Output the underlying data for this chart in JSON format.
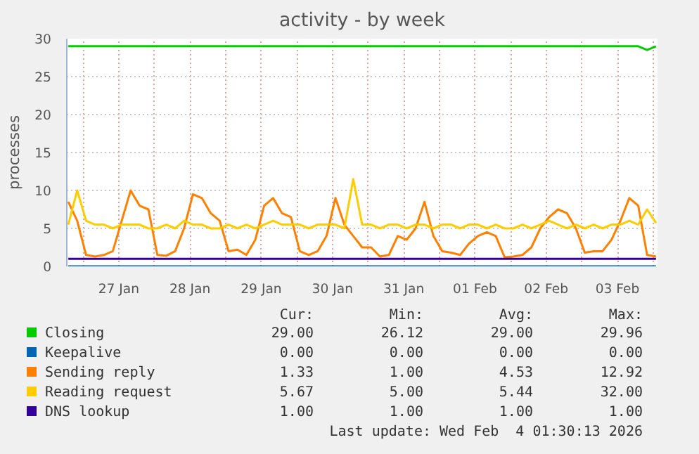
{
  "chart_data": {
    "type": "line",
    "title": "activity - by week",
    "ylabel": "processes",
    "x": [
      "2026-01-26T19:00",
      "2026-01-26T22:00",
      "2026-01-27T01:00",
      "2026-01-27T04:00",
      "2026-01-27T07:00",
      "2026-01-27T10:00",
      "2026-01-27T13:00",
      "2026-01-27T16:00",
      "2026-01-27T19:00",
      "2026-01-27T22:00",
      "2026-01-28T01:00",
      "2026-01-28T04:00",
      "2026-01-28T07:00",
      "2026-01-28T10:00",
      "2026-01-28T13:00",
      "2026-01-28T16:00",
      "2026-01-28T19:00",
      "2026-01-28T22:00",
      "2026-01-29T01:00",
      "2026-01-29T04:00",
      "2026-01-29T07:00",
      "2026-01-29T10:00",
      "2026-01-29T13:00",
      "2026-01-29T16:00",
      "2026-01-29T19:00",
      "2026-01-29T22:00",
      "2026-01-30T01:00",
      "2026-01-30T04:00",
      "2026-01-30T07:00",
      "2026-01-30T10:00",
      "2026-01-30T13:00",
      "2026-01-30T16:00",
      "2026-01-30T19:00",
      "2026-01-30T22:00",
      "2026-01-31T01:00",
      "2026-01-31T04:00",
      "2026-01-31T07:00",
      "2026-01-31T10:00",
      "2026-01-31T13:00",
      "2026-01-31T16:00",
      "2026-01-31T19:00",
      "2026-01-31T22:00",
      "2026-02-01T01:00",
      "2026-02-01T04:00",
      "2026-02-01T07:00",
      "2026-02-01T10:00",
      "2026-02-01T13:00",
      "2026-02-01T16:00",
      "2026-02-01T19:00",
      "2026-02-01T22:00",
      "2026-02-02T01:00",
      "2026-02-02T04:00",
      "2026-02-02T07:00",
      "2026-02-02T10:00",
      "2026-02-02T13:00",
      "2026-02-02T16:00",
      "2026-02-02T19:00",
      "2026-02-02T22:00",
      "2026-02-03T01:00",
      "2026-02-03T04:00",
      "2026-02-03T07:00",
      "2026-02-03T10:00",
      "2026-02-03T13:00",
      "2026-02-03T16:00",
      "2026-02-03T19:00",
      "2026-02-03T22:00",
      "2026-02-04T01:00"
    ],
    "series": [
      {
        "name": "Closing",
        "color": "#00cc00",
        "values": [
          29,
          29,
          29,
          29,
          29,
          29,
          29,
          29,
          29,
          29,
          29,
          29,
          29,
          29,
          29,
          29,
          29,
          29,
          29,
          29,
          29,
          29,
          29,
          29,
          29,
          29,
          29,
          29,
          29,
          29,
          29,
          29,
          29,
          29,
          29,
          29,
          29,
          29,
          29,
          29,
          29,
          29,
          29,
          29,
          29,
          29,
          29,
          29,
          29,
          29,
          29,
          29,
          29,
          29,
          29,
          29,
          29,
          29,
          29,
          29,
          29,
          29,
          29,
          29,
          29,
          28.5,
          29
        ]
      },
      {
        "name": "Keepalive",
        "color": "#0066b3",
        "values": [
          0,
          0,
          0,
          0,
          0,
          0,
          0,
          0,
          0,
          0,
          0,
          0,
          0,
          0,
          0,
          0,
          0,
          0,
          0,
          0,
          0,
          0,
          0,
          0,
          0,
          0,
          0,
          0,
          0,
          0,
          0,
          0,
          0,
          0,
          0,
          0,
          0,
          0,
          0,
          0,
          0,
          0,
          0,
          0,
          0,
          0,
          0,
          0,
          0,
          0,
          0,
          0,
          0,
          0,
          0,
          0,
          0,
          0,
          0,
          0,
          0,
          0,
          0,
          0,
          0,
          0,
          0
        ]
      },
      {
        "name": "Sending reply",
        "color": "#ff8000",
        "values": [
          8.5,
          6,
          1.5,
          1.3,
          1.5,
          2,
          6,
          10,
          8,
          7.5,
          1.5,
          1.4,
          2,
          5,
          9.5,
          9,
          7,
          6,
          2,
          2.2,
          1.5,
          3.5,
          8,
          9,
          7,
          6.5,
          2,
          1.5,
          2,
          4,
          9,
          5.5,
          4,
          2.5,
          2.5,
          1.3,
          1.5,
          4,
          3.5,
          5,
          8.5,
          4,
          2,
          1.8,
          1.5,
          3,
          4,
          4.5,
          4,
          1.2,
          1.3,
          1.5,
          2.5,
          5,
          6.5,
          7.5,
          7,
          5,
          1.8,
          2,
          2,
          3.5,
          6,
          9,
          8,
          1.5,
          1.3
        ]
      },
      {
        "name": "Reading request",
        "color": "#ffcc00",
        "values": [
          5.5,
          10,
          6,
          5.5,
          5.5,
          5,
          5.5,
          5.5,
          5.5,
          5,
          5,
          5.5,
          5,
          6,
          5.5,
          5.5,
          5,
          5,
          5.5,
          5,
          5.5,
          5,
          5.5,
          6,
          5.5,
          5.5,
          5.5,
          5,
          5.5,
          5.5,
          5.5,
          5,
          11.5,
          5.5,
          5.5,
          5,
          5.5,
          5.5,
          5,
          5.5,
          5.5,
          5,
          5.5,
          5.5,
          5,
          5.5,
          5.5,
          5,
          5.5,
          5,
          5,
          5.5,
          5,
          5.5,
          6,
          5.5,
          5,
          5.5,
          5,
          5.5,
          5,
          5.5,
          5.5,
          6,
          5.5,
          7.5,
          5.7
        ]
      },
      {
        "name": "DNS lookup",
        "color": "#330099",
        "values": [
          1,
          1,
          1,
          1,
          1,
          1,
          1,
          1,
          1,
          1,
          1,
          1,
          1,
          1,
          1,
          1,
          1,
          1,
          1,
          1,
          1,
          1,
          1,
          1,
          1,
          1,
          1,
          1,
          1,
          1,
          1,
          1,
          1,
          1,
          1,
          1,
          1,
          1,
          1,
          1,
          1,
          1,
          1,
          1,
          1,
          1,
          1,
          1,
          1,
          1,
          1,
          1,
          1,
          1,
          1,
          1,
          1,
          1,
          1,
          1,
          1,
          1,
          1,
          1,
          1,
          1,
          1
        ]
      }
    ],
    "xlim": [
      "2026-01-26T18:30",
      "2026-02-04T01:30"
    ],
    "xticks": [
      {
        "value": "2026-01-27T00:00",
        "label": null
      },
      {
        "value": "2026-01-27T12:00",
        "label": "27 Jan"
      },
      {
        "value": "2026-01-28T00:00",
        "label": null
      },
      {
        "value": "2026-01-28T12:00",
        "label": "28 Jan"
      },
      {
        "value": "2026-01-29T00:00",
        "label": null
      },
      {
        "value": "2026-01-29T12:00",
        "label": "29 Jan"
      },
      {
        "value": "2026-01-30T00:00",
        "label": null
      },
      {
        "value": "2026-01-30T12:00",
        "label": "30 Jan"
      },
      {
        "value": "2026-01-31T00:00",
        "label": null
      },
      {
        "value": "2026-01-31T12:00",
        "label": "31 Jan"
      },
      {
        "value": "2026-02-01T00:00",
        "label": null
      },
      {
        "value": "2026-02-01T12:00",
        "label": "01 Feb"
      },
      {
        "value": "2026-02-02T00:00",
        "label": null
      },
      {
        "value": "2026-02-02T12:00",
        "label": "02 Feb"
      },
      {
        "value": "2026-02-03T00:00",
        "label": null
      },
      {
        "value": "2026-02-03T12:00",
        "label": "03 Feb"
      },
      {
        "value": "2026-02-04T00:00",
        "label": null
      }
    ],
    "ylim": [
      0,
      30
    ],
    "yticks": [
      0,
      5,
      10,
      15,
      20,
      25,
      30
    ],
    "grid": true,
    "legend": "bottom",
    "annotations": [
      "Cur:",
      "Min:",
      "Avg:",
      "Max:",
      "29.00",
      "26.12",
      "29.00",
      "29.96",
      "0.00",
      "0.00",
      "0.00",
      "0.00",
      "1.33",
      "1.00",
      "4.53",
      "12.92",
      "5.67",
      "5.00",
      "5.44",
      "32.00",
      "1.00",
      "1.00",
      "1.00",
      "1.00",
      "Last update: Wed Feb  4 01:30:13 2026"
    ]
  }
}
